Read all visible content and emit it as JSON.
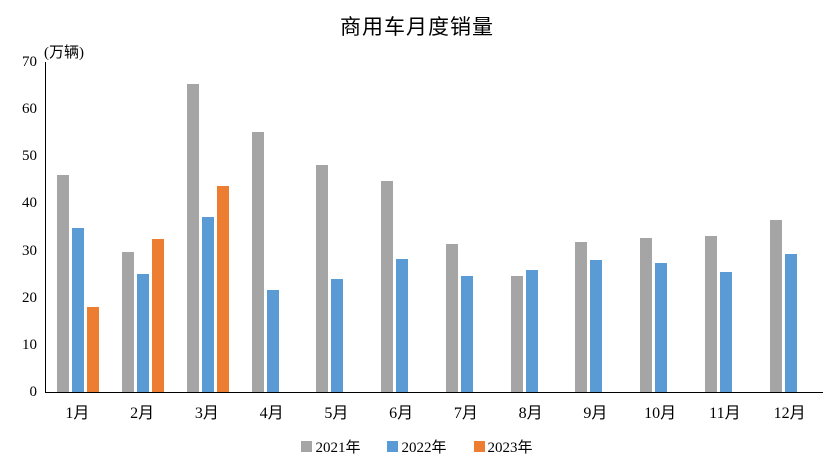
{
  "title": "商用车月度销量",
  "axis_unit_label": "(万辆)",
  "chart_data": {
    "type": "bar",
    "title": "商用车月度销量",
    "xlabel": "",
    "ylabel": "(万辆)",
    "ylim": [
      0,
      70
    ],
    "yticks": [
      0,
      10,
      20,
      30,
      40,
      50,
      60,
      70
    ],
    "grid": false,
    "legend_position": "bottom",
    "categories": [
      "1月",
      "2月",
      "3月",
      "4月",
      "5月",
      "6月",
      "7月",
      "8月",
      "9月",
      "10月",
      "11月",
      "12月"
    ],
    "series": [
      {
        "name": "2021年",
        "color": "#A5A5A5",
        "values": [
          46.0,
          29.8,
          65.3,
          55.1,
          48.2,
          44.7,
          31.3,
          24.7,
          31.8,
          32.7,
          33.1,
          36.5
        ]
      },
      {
        "name": "2022年",
        "color": "#5B9BD5",
        "values": [
          34.7,
          25.0,
          37.1,
          21.7,
          24.0,
          28.3,
          24.6,
          25.9,
          28.0,
          27.3,
          25.4,
          29.3
        ]
      },
      {
        "name": "2023年",
        "color": "#ED7D31",
        "values": [
          18.0,
          32.4,
          43.7,
          null,
          null,
          null,
          null,
          null,
          null,
          null,
          null,
          null
        ]
      }
    ]
  }
}
